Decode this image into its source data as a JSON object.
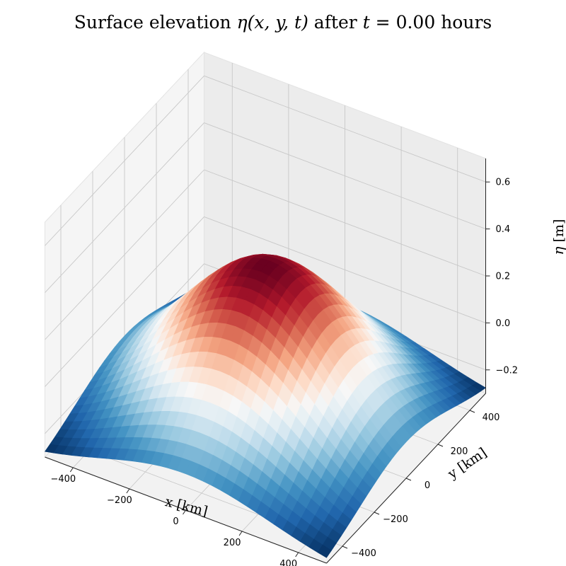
{
  "chart_data": {
    "type": "surface",
    "title": {
      "prefix": "Surface elevation ",
      "math_var": "η",
      "math_args": "(x, y, t)",
      "middle": " after ",
      "time_var": "t",
      "time_value": " = 0.00",
      "suffix": " hours"
    },
    "xlabel": "x [km]",
    "ylabel": "y [km]",
    "zlabel": {
      "symbol": "η",
      "unit": " [m]"
    },
    "xlim": [
      -500,
      500
    ],
    "ylim": [
      -500,
      500
    ],
    "zlim": [
      -0.3,
      0.7
    ],
    "x_ticks": [
      {
        "value": -400,
        "label": "−400"
      },
      {
        "value": -200,
        "label": "−200"
      },
      {
        "value": 0,
        "label": "0"
      },
      {
        "value": 200,
        "label": "200"
      },
      {
        "value": 400,
        "label": "400"
      }
    ],
    "y_ticks": [
      {
        "value": -400,
        "label": "−400"
      },
      {
        "value": -200,
        "label": "−200"
      },
      {
        "value": 0,
        "label": "0"
      },
      {
        "value": 200,
        "label": "200"
      },
      {
        "value": 400,
        "label": "400"
      }
    ],
    "z_ticks": [
      {
        "value": -0.2,
        "label": "−0.2"
      },
      {
        "value": 0.0,
        "label": "0.0"
      },
      {
        "value": 0.2,
        "label": "0.2"
      },
      {
        "value": 0.4,
        "label": "0.4"
      },
      {
        "value": 0.6,
        "label": "0.6"
      }
    ],
    "surface": {
      "function": "gaussian",
      "amplitude": 0.7,
      "center_x": 0,
      "center_y": 0,
      "sigma": 300,
      "offset": -0.32,
      "grid_points": 33
    },
    "colormap": "RdBu_r",
    "grid": true
  }
}
